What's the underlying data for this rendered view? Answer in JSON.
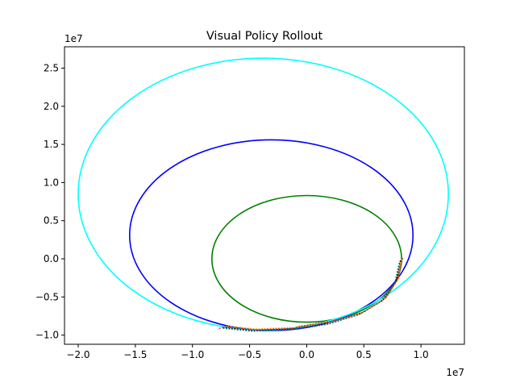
{
  "chart_data": {
    "type": "line",
    "title": "Visual Policy Rollout",
    "xlabel": "",
    "ylabel": "",
    "x_offset_label": "1e7",
    "y_offset_label": "1e7",
    "xlim": [
      -2.12,
      1.38
    ],
    "ylim": [
      -1.12,
      2.78
    ],
    "xticks": [
      -2.0,
      -1.5,
      -1.0,
      -0.5,
      0.0,
      0.5,
      1.0
    ],
    "xtick_labels": [
      "−2.0",
      "−1.5",
      "−1.0",
      "−0.5",
      "0.0",
      "0.5",
      "1.0"
    ],
    "yticks": [
      -1.0,
      -0.5,
      0.0,
      0.5,
      1.0,
      1.5,
      2.0,
      2.5
    ],
    "ytick_labels": [
      "−1.0",
      "−0.5",
      "0.0",
      "0.5",
      "1.0",
      "1.5",
      "2.0",
      "2.5"
    ],
    "grid": false,
    "legend": "none",
    "orbits": [
      {
        "color": "#008000",
        "center": [
          0.0,
          0.0
        ],
        "rx": 0.83,
        "ry": 0.83
      },
      {
        "color": "#0000ff",
        "center": [
          -0.31,
          0.31
        ],
        "rx": 1.24,
        "ry": 1.25
      },
      {
        "color": "#00ffff",
        "center": [
          -0.38,
          0.85
        ],
        "rx": 1.62,
        "ry": 1.78
      }
    ],
    "rollout_segments": [
      {
        "color": "#ff0000",
        "points": [
          [
            0.83,
            0.0
          ],
          [
            0.79,
            -0.28
          ],
          [
            0.68,
            -0.53
          ],
          [
            0.48,
            -0.71
          ],
          [
            0.22,
            -0.83
          ],
          [
            -0.12,
            -0.91
          ],
          [
            -0.45,
            -0.93
          ],
          [
            -0.72,
            -0.89
          ],
          [
            -0.78,
            -0.92
          ]
        ]
      },
      {
        "color": "#ff8c00",
        "points": [
          [
            0.83,
            0.0
          ],
          [
            0.8,
            -0.27
          ],
          [
            0.69,
            -0.52
          ],
          [
            0.49,
            -0.7
          ],
          [
            0.23,
            -0.82
          ],
          [
            -0.11,
            -0.9
          ],
          [
            -0.44,
            -0.92
          ],
          [
            -0.71,
            -0.88
          ]
        ]
      },
      {
        "color": "#000000",
        "points": [
          [
            0.82,
            -0.02
          ],
          [
            0.78,
            -0.3
          ],
          [
            0.66,
            -0.55
          ],
          [
            0.46,
            -0.73
          ],
          [
            0.2,
            -0.85
          ],
          [
            -0.14,
            -0.92
          ],
          [
            -0.46,
            -0.94
          ],
          [
            -0.73,
            -0.9
          ]
        ]
      },
      {
        "color": "#008080",
        "points": [
          [
            0.81,
            -0.05
          ],
          [
            0.77,
            -0.32
          ],
          [
            0.64,
            -0.57
          ],
          [
            0.44,
            -0.74
          ],
          [
            0.18,
            -0.86
          ],
          [
            -0.16,
            -0.93
          ],
          [
            -0.48,
            -0.95
          ],
          [
            -0.74,
            -0.91
          ]
        ]
      },
      {
        "color": "#8b4513",
        "points": [
          [
            0.84,
            0.01
          ],
          [
            0.8,
            -0.26
          ],
          [
            0.7,
            -0.5
          ],
          [
            0.51,
            -0.69
          ],
          [
            0.25,
            -0.81
          ],
          [
            -0.09,
            -0.89
          ]
        ]
      }
    ]
  }
}
